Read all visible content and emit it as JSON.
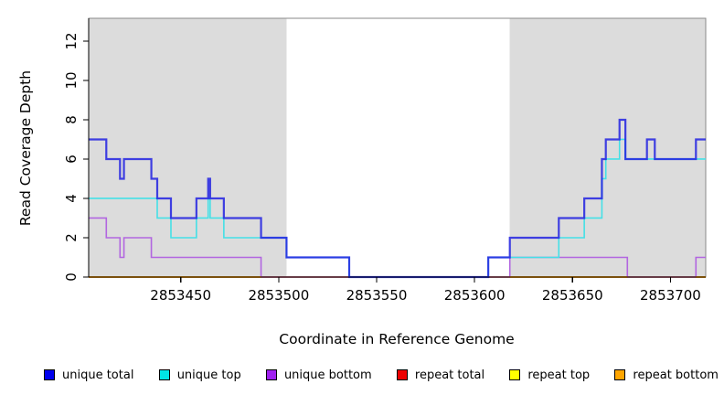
{
  "figure": {
    "ylab": "Read Coverage Depth",
    "xlab": "Coordinate in Reference Genome"
  },
  "legend": {
    "items": [
      {
        "label": "unique total",
        "color": "#0000EE"
      },
      {
        "label": "unique top",
        "color": "#00E5E5"
      },
      {
        "label": "unique bottom",
        "color": "#A020F0"
      },
      {
        "label": "repeat total",
        "color": "#EE0000"
      },
      {
        "label": "repeat top",
        "color": "#FFFF00"
      },
      {
        "label": "repeat bottom",
        "color": "#FFA500"
      }
    ]
  },
  "chart_data": {
    "type": "line",
    "subtype": "step",
    "title": "",
    "xlabel": "Coordinate in Reference Genome",
    "ylabel": "Read Coverage Depth",
    "xlim": [
      2853403,
      2853718
    ],
    "ylim": [
      0,
      13.16
    ],
    "x_ticks": [
      2853450,
      2853500,
      2853550,
      2853600,
      2853650,
      2853700
    ],
    "y_ticks": [
      0,
      2,
      4,
      6,
      8,
      10,
      12
    ],
    "grid": false,
    "legend_position": "bottom",
    "shading": {
      "color": "#DCDCDC",
      "regions": [
        [
          2853403,
          2853504
        ],
        [
          2853618,
          2853718
        ]
      ]
    },
    "series": [
      {
        "name": "repeat top",
        "color": "#EEDD00",
        "width": 1.4,
        "opacity": 1,
        "segments": [
          [
            [
              2853403,
              0
            ],
            [
              2853718,
              0
            ]
          ]
        ]
      },
      {
        "name": "unique bottom",
        "color": "#B266E0",
        "width": 1.6,
        "opacity": 1,
        "segments": [
          [
            [
              2853403,
              3
            ],
            [
              2853412,
              2
            ],
            [
              2853419,
              1
            ],
            [
              2853421,
              2
            ],
            [
              2853435,
              1
            ],
            [
              2853491,
              0
            ],
            [
              2853618,
              1
            ],
            [
              2853678,
              0
            ],
            [
              2853713,
              1
            ],
            [
              2853718,
              1
            ]
          ]
        ]
      },
      {
        "name": "repeat total",
        "color": "#C84A6E",
        "width": 1.4,
        "opacity": 1,
        "segments": [
          [
            [
              2853403,
              0
            ],
            [
              2853718,
              0
            ]
          ]
        ]
      },
      {
        "name": "repeat bottom",
        "color": "#FFA500",
        "width": 1.8,
        "opacity": 1,
        "segments": [
          [
            [
              2853403,
              0
            ],
            [
              2853491,
              0
            ]
          ],
          [
            [
              2853618,
              0
            ],
            [
              2853678,
              0
            ]
          ],
          [
            [
              2853713,
              0
            ],
            [
              2853718,
              0
            ]
          ]
        ]
      },
      {
        "name": "unique top",
        "color": "#45E0E6",
        "width": 1.6,
        "opacity": 1,
        "segments": [
          [
            [
              2853403,
              4
            ],
            [
              2853438,
              3
            ],
            [
              2853445,
              2
            ],
            [
              2853458,
              3
            ],
            [
              2853464,
              4
            ],
            [
              2853465,
              3
            ],
            [
              2853472,
              2
            ],
            [
              2853504,
              1
            ],
            [
              2853536,
              0
            ],
            [
              2853607,
              1
            ],
            [
              2853643,
              2
            ],
            [
              2853656,
              3
            ],
            [
              2853665,
              5
            ],
            [
              2853667,
              6
            ],
            [
              2853674,
              7
            ],
            [
              2853677,
              6
            ],
            [
              2853718,
              6
            ]
          ]
        ]
      },
      {
        "name": "unique total",
        "color": "#2222E2",
        "width": 2.2,
        "opacity": 0.85,
        "segments": [
          [
            [
              2853403,
              7
            ],
            [
              2853412,
              6
            ],
            [
              2853419,
              5
            ],
            [
              2853421,
              6
            ],
            [
              2853435,
              5
            ],
            [
              2853438,
              4
            ],
            [
              2853445,
              3
            ],
            [
              2853458,
              4
            ],
            [
              2853464,
              5
            ],
            [
              2853465,
              4
            ],
            [
              2853472,
              3
            ],
            [
              2853491,
              2
            ],
            [
              2853504,
              1
            ],
            [
              2853536,
              0
            ],
            [
              2853607,
              1
            ],
            [
              2853618,
              2
            ],
            [
              2853643,
              3
            ],
            [
              2853656,
              4
            ],
            [
              2853665,
              6
            ],
            [
              2853667,
              7
            ],
            [
              2853674,
              8
            ],
            [
              2853677,
              6
            ],
            [
              2853688,
              7
            ],
            [
              2853692,
              6
            ],
            [
              2853713,
              7
            ],
            [
              2853718,
              7
            ]
          ]
        ]
      }
    ]
  }
}
